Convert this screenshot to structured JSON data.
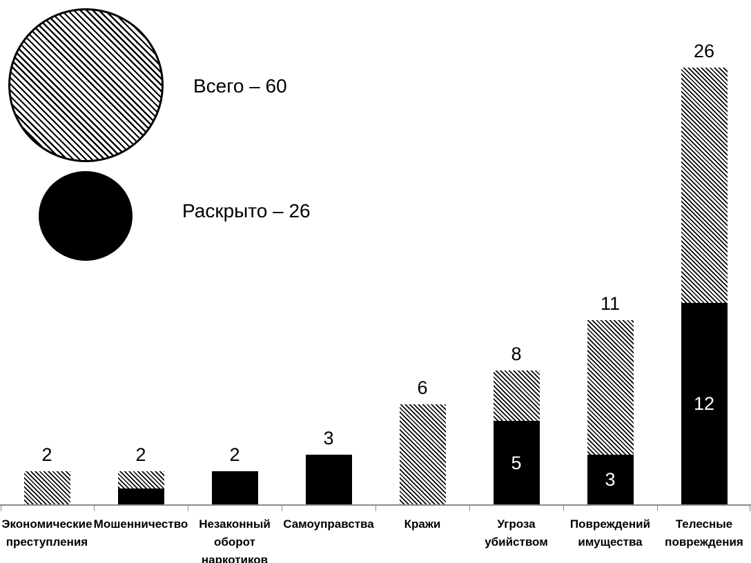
{
  "legend": {
    "total": {
      "label": "Всего – 60",
      "value": 60,
      "swatch": "hatched-circle"
    },
    "solved": {
      "label": "Раскрыто – 26",
      "value": 26,
      "swatch": "black-circle"
    }
  },
  "chart_data": {
    "type": "bar",
    "subtype": "overlaid-total-vs-solved",
    "title": "",
    "xlabel": "",
    "ylabel": "",
    "ylim": [
      0,
      27
    ],
    "grid": false,
    "legend_position": "top-left",
    "categories": [
      "Экономические преступления",
      "Мошенничество",
      "Незаконный оборот наркотиков",
      "Самоуправства",
      "Кражи",
      "Угроза убийством",
      "Повреждений имущества",
      "Телесные повреждения"
    ],
    "category_label_lines": [
      [
        "Экономические",
        "преступления"
      ],
      [
        "Мошенничество"
      ],
      [
        "Незаконный",
        "оборот",
        "наркотиков"
      ],
      [
        "Самоуправства"
      ],
      [
        "Кражи"
      ],
      [
        "Угроза",
        "убийством"
      ],
      [
        "Повреждений",
        "имущества"
      ],
      [
        "Телесные",
        "повреждения"
      ]
    ],
    "series": [
      {
        "name": "Всего",
        "style": "hatched",
        "values": [
          2,
          2,
          2,
          3,
          6,
          8,
          11,
          26
        ]
      },
      {
        "name": "Раскрыто",
        "style": "solid-black",
        "values": [
          0,
          1,
          2,
          3,
          0,
          5,
          3,
          12
        ]
      }
    ],
    "total_labels": [
      "2",
      "2",
      "2",
      "3",
      "6",
      "8",
      "11",
      "26"
    ],
    "solved_labels": [
      "",
      "",
      "",
      "",
      "",
      "5",
      "3",
      "12"
    ],
    "colors": {
      "foreground": "#000000",
      "background": "#ffffff",
      "axis": "#8a8a8a",
      "inner_label_text": "#ffffff"
    }
  }
}
